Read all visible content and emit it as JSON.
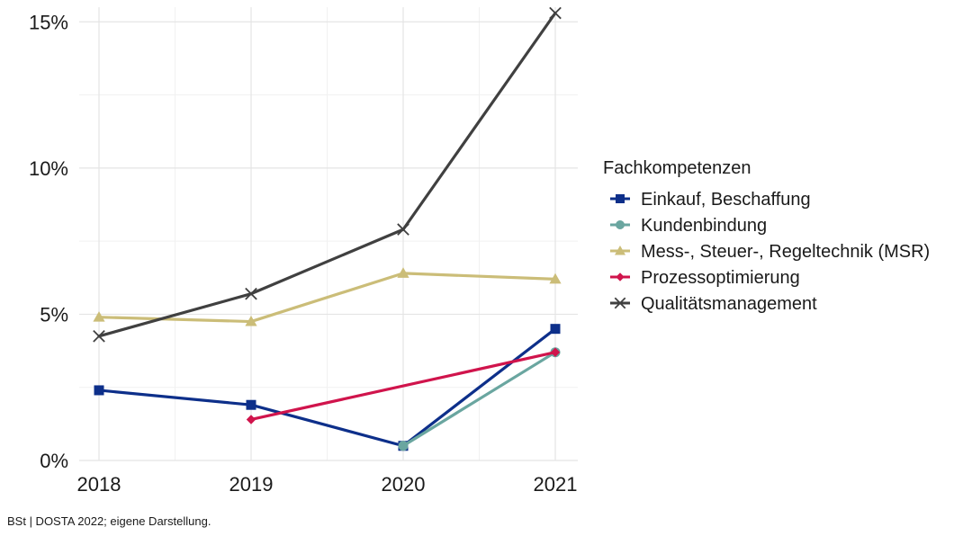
{
  "chart_data": {
    "type": "line",
    "x": [
      "2018",
      "2019",
      "2020",
      "2021"
    ],
    "ylim": [
      0,
      15.5
    ],
    "yticks": [
      0,
      5,
      10,
      15
    ],
    "ytick_labels": [
      "0%",
      "5%",
      "10%",
      "15%"
    ],
    "grid": true,
    "legend_position": "right",
    "legend_title": "Fachkompetenzen",
    "series": [
      {
        "name": "Einkauf, Beschaffung",
        "color": "#0d2f8a",
        "marker": "square",
        "values": [
          2.4,
          1.9,
          0.5,
          4.5
        ]
      },
      {
        "name": "Kundenbindung",
        "color": "#6aa6a0",
        "marker": "circle",
        "values": [
          null,
          null,
          0.5,
          3.7
        ]
      },
      {
        "name": "Mess-, Steuer-, Regeltechnik (MSR)",
        "color": "#cbbd78",
        "marker": "triangle",
        "values": [
          4.9,
          4.75,
          6.4,
          6.2
        ]
      },
      {
        "name": "Prozessoptimierung",
        "color": "#d0144c",
        "marker": "diamond",
        "values": [
          null,
          1.4,
          null,
          3.7
        ]
      },
      {
        "name": "Qualitätsmanagement",
        "color": "#404040",
        "marker": "cross",
        "values": [
          4.25,
          5.7,
          7.9,
          15.3
        ]
      }
    ]
  },
  "source_note": "BSt | DOSTA 2022; eigene Darstellung."
}
